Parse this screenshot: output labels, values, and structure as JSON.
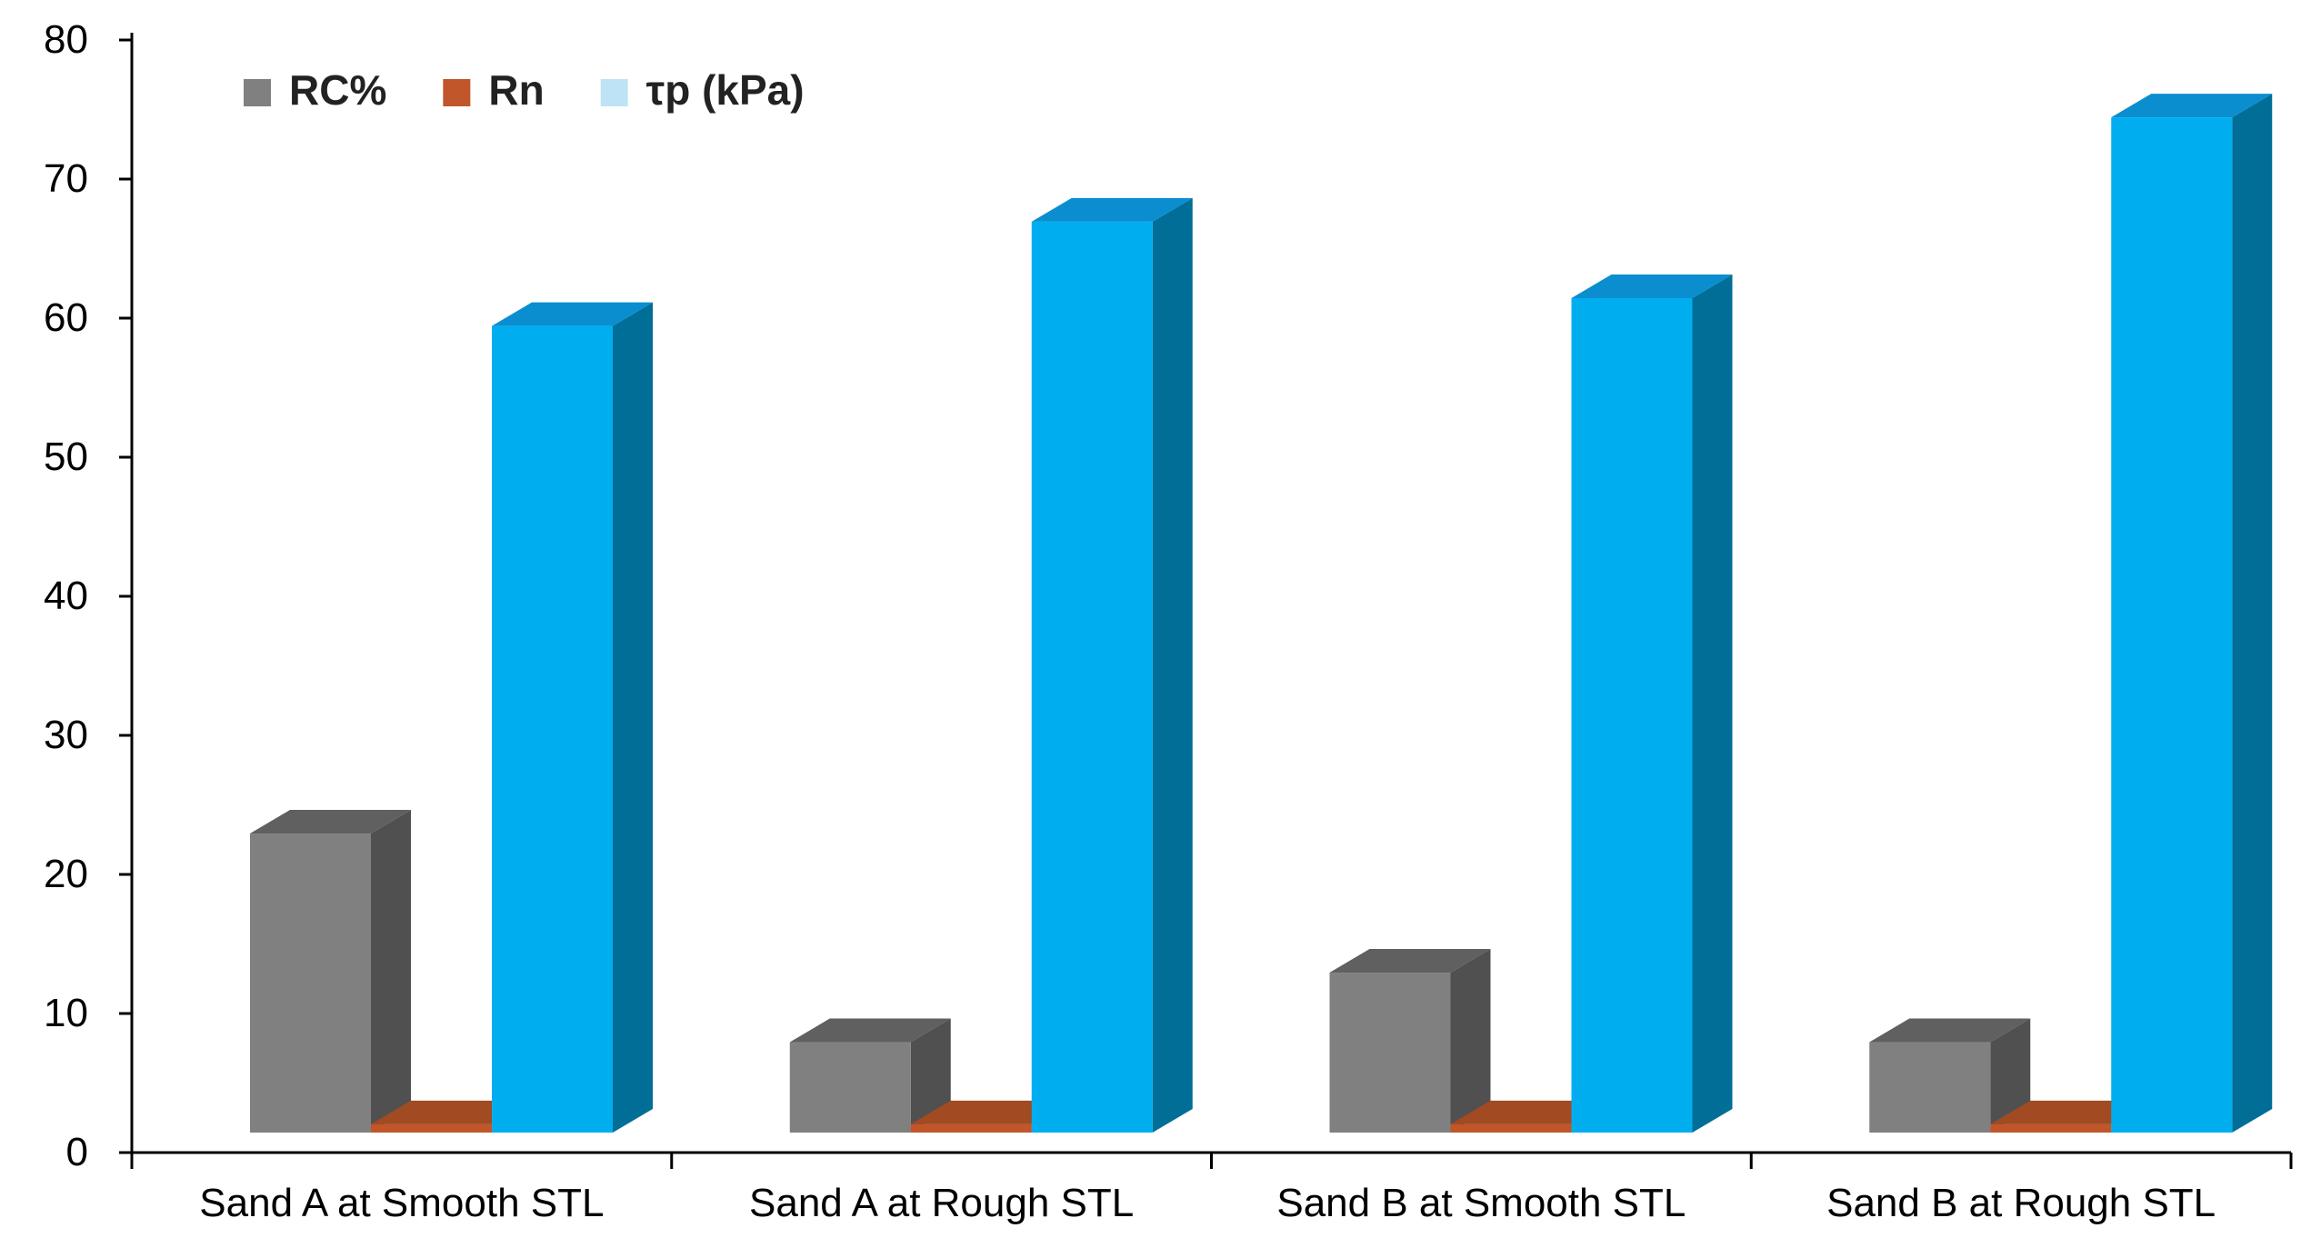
{
  "chart_data": {
    "type": "bar",
    "style": "3d-column",
    "title": "",
    "xlabel": "",
    "ylabel": "",
    "ylim": [
      0,
      80
    ],
    "yticks": [
      0,
      10,
      20,
      30,
      40,
      50,
      60,
      70,
      80
    ],
    "grid": false,
    "legend_position": "top-left",
    "categories": [
      "Sand A at Smooth STL",
      "Sand A at Rough STL",
      "Sand B at Smooth STL",
      "Sand B at Rough STL"
    ],
    "series": [
      {
        "name": "RC%",
        "values": [
          21.5,
          6.5,
          11.5,
          6.5
        ],
        "color": "#808080",
        "side_color": "#505050",
        "top_color": "#606060"
      },
      {
        "name": "Rn",
        "values": [
          0.6,
          0.6,
          0.6,
          0.6
        ],
        "color": "#C0562A",
        "side_color": "#8A3A18",
        "top_color": "#A24A22"
      },
      {
        "name": "τp (kPa)",
        "values": [
          58,
          65.5,
          60,
          73
        ],
        "color": "#00AEEF",
        "side_color": "#006E97",
        "top_color": "#0A8ECF"
      }
    ]
  }
}
